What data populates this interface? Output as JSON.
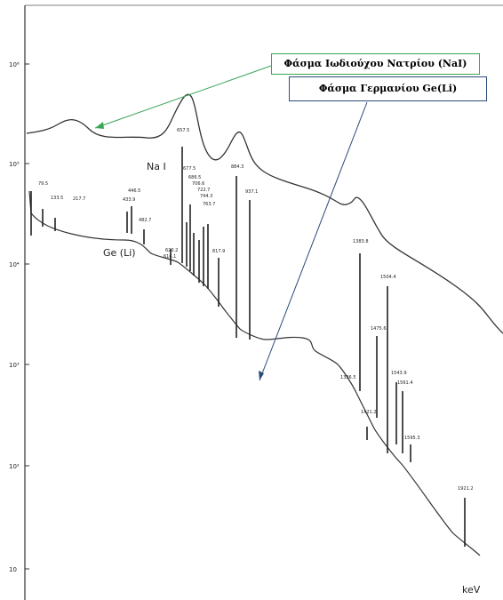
{
  "axis": {
    "yticks": [
      "10⁶",
      "10⁵",
      "10⁴",
      "10³",
      "10²",
      "10"
    ],
    "xlabel": "keV"
  },
  "curves": {
    "nai": "Na I",
    "ge": "Ge (Li)"
  },
  "peaks": [
    "79.5",
    "133.5",
    "217.7",
    "446.5",
    "433.9",
    "482.7",
    "620.2",
    "616.1",
    "657.5",
    "677.5",
    "686.5",
    "706.6",
    "722.7",
    "744.3",
    "763.7",
    "817.9",
    "884.3",
    "937.1",
    "1383.8",
    "1504.4",
    "1475.6",
    "1336.5",
    "1421.2",
    "1543.9",
    "1561.4",
    "1595.3",
    "1921.2"
  ],
  "callouts": {
    "nai": "Φάσμα Ιωδιούχου Νατρίου (NaI)",
    "ge": "Φάσμα Γερμανίου  Ge(Li)"
  }
}
